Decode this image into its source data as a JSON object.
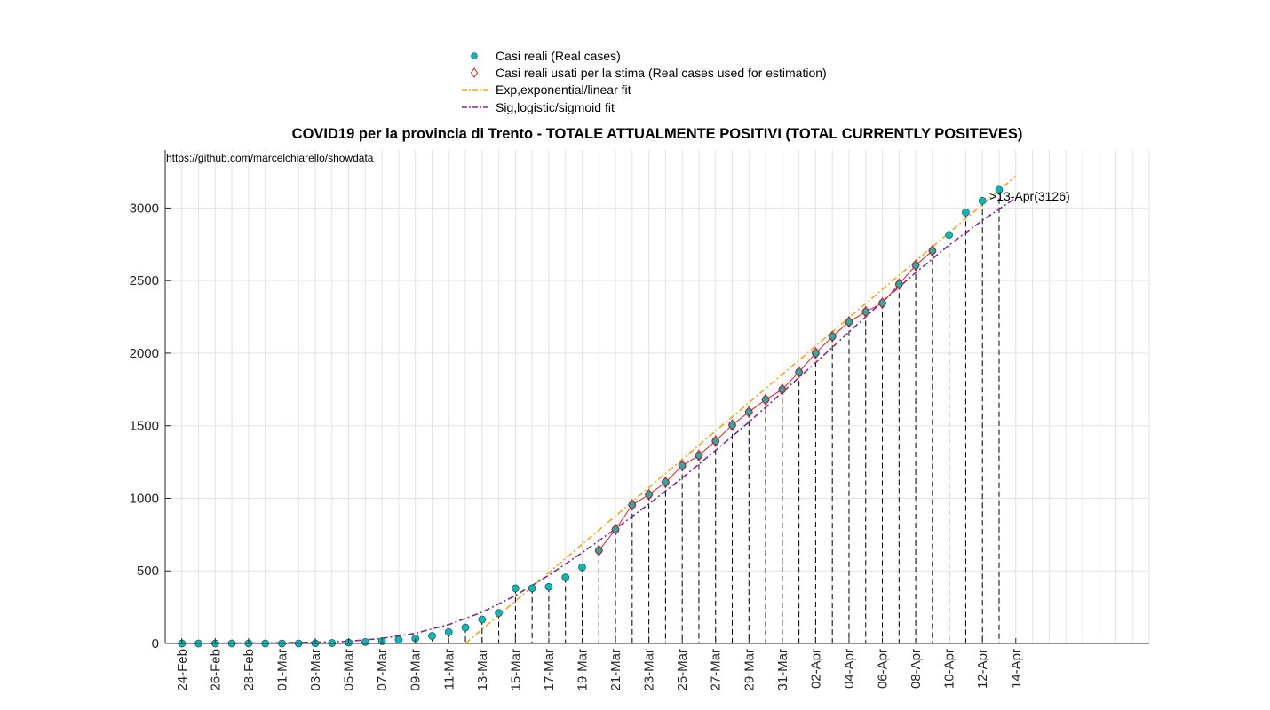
{
  "title": "COVID19 per la provincia di Trento - TOTALE ATTUALMENTE POSITIVI (TOTAL CURRENTLY POSITEVES)",
  "source_text": "https://github.com/marcelchiarello/showdata",
  "last_annotation": ">13-Apr(3126)",
  "legend": [
    {
      "label": "Casi reali (Real cases)",
      "color": "#17b3b3",
      "symbol": "filled-circle"
    },
    {
      "label": "Casi reali usati per la stima (Real cases used for estimation)",
      "color": "#e41a1c",
      "symbol": "diamond"
    },
    {
      "label": "Exp,exponential/linear fit",
      "color": "#f5a623",
      "symbol": "dash-dot"
    },
    {
      "label": "Sig,logistic/sigmoid fit",
      "color": "#7b2d8e",
      "symbol": "dash-dot"
    }
  ],
  "chart_data": {
    "type": "scatter",
    "title": "COVID19 per la provincia di Trento - TOTALE ATTUALMENTE POSITIVI (TOTAL CURRENTLY POSITEVES)",
    "xlabel": "",
    "ylabel": "",
    "x_tick_labels": [
      "24-Feb",
      "26-Feb",
      "28-Feb",
      "01-Mar",
      "03-Mar",
      "05-Mar",
      "07-Mar",
      "09-Mar",
      "11-Mar",
      "13-Mar",
      "15-Mar",
      "17-Mar",
      "19-Mar",
      "21-Mar",
      "23-Mar",
      "25-Mar",
      "27-Mar",
      "29-Mar",
      "31-Mar",
      "02-Apr",
      "04-Apr",
      "06-Apr",
      "08-Apr",
      "10-Apr",
      "12-Apr",
      "14-Apr"
    ],
    "y_ticks": [
      0,
      500,
      1000,
      1500,
      2000,
      2500,
      3000
    ],
    "xlim": [
      "23-Feb",
      "22-Apr"
    ],
    "ylim": [
      0,
      3400
    ],
    "grid": true,
    "legend_position": "top-center, outside plot",
    "series": [
      {
        "name": "Casi reali (Real cases)",
        "color": "#17b3b3",
        "x": [
          "24-Feb",
          "25-Feb",
          "26-Feb",
          "27-Feb",
          "28-Feb",
          "29-Feb",
          "01-Mar",
          "02-Mar",
          "03-Mar",
          "04-Mar",
          "05-Mar",
          "06-Mar",
          "07-Mar",
          "08-Mar",
          "09-Mar",
          "10-Mar",
          "11-Mar",
          "12-Mar",
          "13-Mar",
          "14-Mar",
          "15-Mar",
          "16-Mar",
          "17-Mar",
          "18-Mar",
          "19-Mar",
          "20-Mar",
          "21-Mar",
          "22-Mar",
          "23-Mar",
          "24-Mar",
          "25-Mar",
          "26-Mar",
          "27-Mar",
          "28-Mar",
          "29-Mar",
          "30-Mar",
          "31-Mar",
          "01-Apr",
          "02-Apr",
          "03-Apr",
          "04-Apr",
          "05-Apr",
          "06-Apr",
          "07-Apr",
          "08-Apr",
          "09-Apr",
          "10-Apr",
          "11-Apr",
          "12-Apr",
          "13-Apr"
        ],
        "y": [
          0,
          0,
          0,
          0,
          0,
          0,
          0,
          0,
          1,
          3,
          6,
          10,
          16,
          25,
          35,
          52,
          78,
          110,
          165,
          210,
          380,
          380,
          390,
          455,
          525,
          640,
          785,
          955,
          1025,
          1110,
          1225,
          1295,
          1395,
          1505,
          1595,
          1680,
          1750,
          1870,
          2000,
          2115,
          2215,
          2285,
          2345,
          2475,
          2605,
          2705,
          2815,
          2970,
          3050,
          3126
        ]
      },
      {
        "name": "Casi reali usati per la stima (Real cases used for estimation)",
        "color": "#e41a1c",
        "x": [
          "20-Mar",
          "21-Mar",
          "22-Mar",
          "23-Mar",
          "24-Mar",
          "25-Mar",
          "26-Mar",
          "27-Mar",
          "28-Mar",
          "29-Mar",
          "30-Mar",
          "31-Mar",
          "01-Apr",
          "02-Apr",
          "03-Apr",
          "04-Apr",
          "05-Apr",
          "06-Apr",
          "07-Apr",
          "08-Apr",
          "09-Apr"
        ],
        "y": [
          640,
          785,
          955,
          1025,
          1110,
          1225,
          1295,
          1395,
          1505,
          1595,
          1680,
          1750,
          1870,
          2000,
          2115,
          2215,
          2285,
          2345,
          2475,
          2605,
          2705
        ]
      },
      {
        "name": "Exp,exponential/linear fit",
        "color": "#f5a623",
        "x": [
          "12-Mar",
          "14-Apr"
        ],
        "y": [
          0,
          3220
        ]
      },
      {
        "name": "Sig,logistic/sigmoid fit",
        "color": "#7b2d8e",
        "x": [
          "24-Feb",
          "26-Feb",
          "28-Feb",
          "01-Mar",
          "03-Mar",
          "05-Mar",
          "07-Mar",
          "09-Mar",
          "11-Mar",
          "13-Mar",
          "15-Mar",
          "17-Mar",
          "19-Mar",
          "21-Mar",
          "23-Mar",
          "25-Mar",
          "27-Mar",
          "29-Mar",
          "31-Mar",
          "02-Apr",
          "04-Apr",
          "06-Apr",
          "08-Apr",
          "10-Apr",
          "12-Apr",
          "14-Apr"
        ],
        "y": [
          1,
          2,
          3,
          5,
          8,
          15,
          35,
          70,
          130,
          215,
          330,
          470,
          625,
          790,
          960,
          1140,
          1330,
          1525,
          1730,
          1935,
          2145,
          2355,
          2555,
          2745,
          2915,
          3070
        ]
      }
    ],
    "annotations": [
      ">13-Apr(3126)",
      "https://github.com/marcelchiarello/showdata"
    ]
  }
}
